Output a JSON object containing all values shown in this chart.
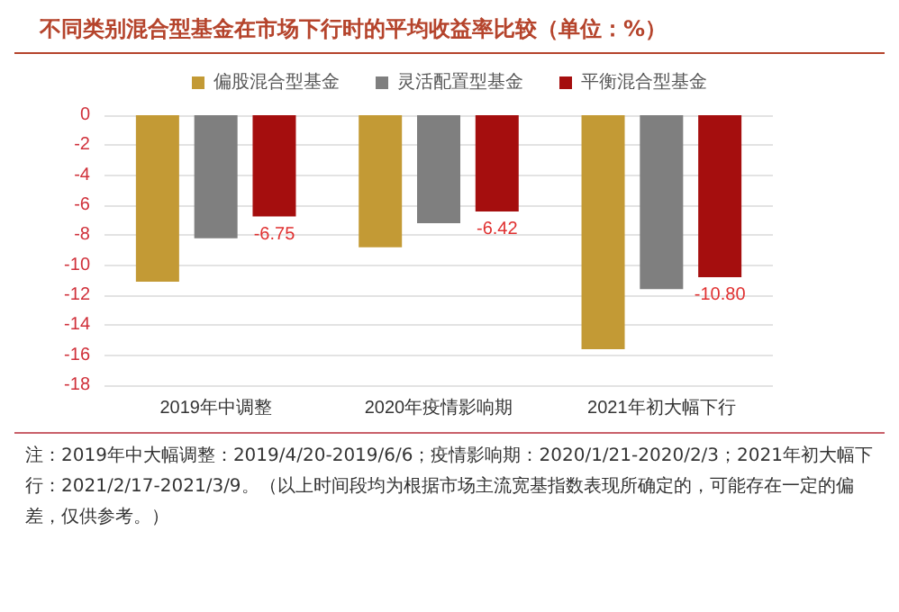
{
  "chart_data": {
    "type": "bar",
    "title": "不同类别混合型基金在市场下行时的平均收益率比较（单位：%）",
    "categories": [
      "2019年中调整",
      "2020年疫情影响期",
      "2021年初大幅下行"
    ],
    "series": [
      {
        "name": "偏股混合型基金",
        "color": "#c39a35",
        "values": [
          -11.1,
          -8.8,
          -15.6
        ]
      },
      {
        "name": "灵活配置型基金",
        "color": "#7f7f7f",
        "values": [
          -8.2,
          -7.2,
          -11.6
        ]
      },
      {
        "name": "平衡混合型基金",
        "color": "#a50e0e",
        "values": [
          -6.75,
          -6.42,
          -10.8
        ],
        "value_labels": [
          "-6.75",
          "-6.42",
          "-10.80"
        ]
      }
    ],
    "ylim": [
      -18,
      0
    ],
    "yticks": [
      -18,
      -16,
      -14,
      -12,
      -10,
      -8,
      -6,
      -4,
      -2,
      0
    ],
    "grid": "y",
    "legend": "top",
    "annotations": [
      "注：2019年中大幅调整：2019/4/20-2019/6/6；疫情影响期：2020/1/21-2020/2/3；2021年初大幅下行：2021/2/17-2021/3/9。（以上时间段均为根据市场主流宽基指数表现所确定的，可能存在一定的偏差，仅供参考。）"
    ]
  }
}
